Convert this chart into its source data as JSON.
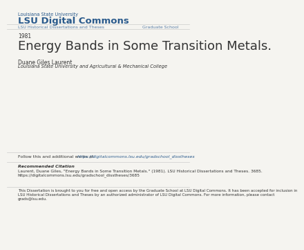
{
  "bg_color": "#f5f4f0",
  "header_small": "Louisiana State University",
  "header_large": "LSU Digital Commons",
  "header_color": "#2a5a8c",
  "nav_left": "LSU Historical Dissertations and Theses",
  "nav_right": "Graduate School",
  "nav_color": "#5a7fa8",
  "nav_fontsize": 4.5,
  "year": "1981",
  "year_fontsize": 5.5,
  "title": "Energy Bands in Some Transition Metals.",
  "title_fontsize": 13,
  "author": "Duane Giles Laurent",
  "author_fontsize": 5.5,
  "institution": "Louisiana State University and Agricultural & Mechanical College",
  "institution_fontsize": 4.8,
  "follow_text": "Follow this and additional works at: ",
  "follow_link": "https://digitalcommons.lsu.edu/gradschool_disstheses",
  "follow_fontsize": 4.5,
  "rec_citation_header": "Recommended Citation",
  "rec_citation_body": "Laurent, Duane Giles, \"Energy Bands in Some Transition Metals.\" (1981). LSU Historical Dissertations and Theses. 3685.\nhttps://digitalcommons.lsu.edu/gradschool_disstheses/3685",
  "rec_citation_fontsize": 4.2,
  "disclaimer": "This Dissertation is brought to you for free and open access by the Graduate School at LSU Digital Commons. It has been accepted for inclusion in\nLSU Historical Dissertations and Theses by an authorized administrator of LSU Digital Commons. For more information, please contact\ngrads@lsu.edu.",
  "disclaimer_fontsize": 4.0,
  "link_color": "#2a5a8c",
  "text_color": "#333333",
  "line_color": "#cccccc"
}
